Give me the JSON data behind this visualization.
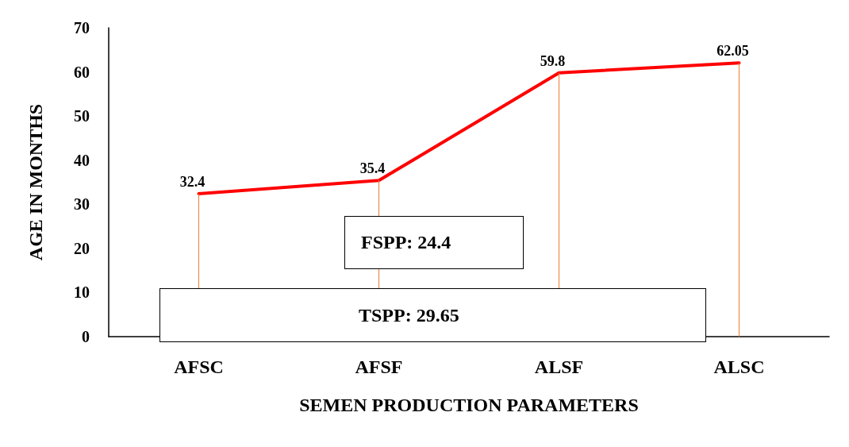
{
  "chart_data": {
    "type": "line",
    "xlabel": "SEMEN PRODUCTION PARAMETERS",
    "ylabel": "AGE IN MONTHS",
    "categories": [
      "AFSC",
      "AFSF",
      "ALSF",
      "ALSC"
    ],
    "series": [
      {
        "color": "#ff0000",
        "values": [
          32.4,
          35.4,
          59.8,
          62.05
        ],
        "value_labels": [
          "32.4",
          "35.4",
          "59.8",
          "62.05"
        ]
      },
      {
        "type": "bar",
        "color": "#ed7d31",
        "values": [
          32.4,
          35.4,
          59.8,
          62.05
        ]
      }
    ],
    "ylim": [
      0,
      70
    ],
    "yticks": [
      0,
      10,
      20,
      30,
      40,
      50,
      60,
      70
    ],
    "annotations": [
      "FSPP: 24.4",
      "TSPP: 29.65"
    ],
    "grid": false,
    "marker": "none",
    "line_style": "solid"
  }
}
